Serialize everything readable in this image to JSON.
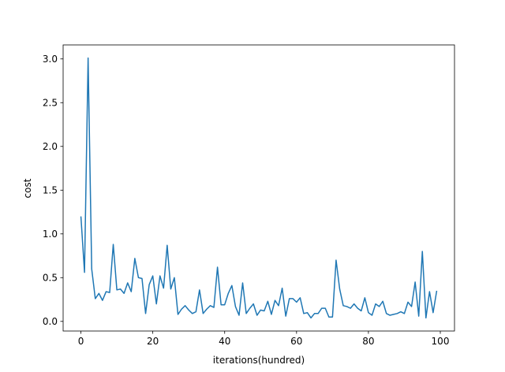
{
  "chart_data": {
    "type": "line",
    "xlabel": "iterations(hundred)",
    "ylabel": "cost",
    "x": [
      0,
      1,
      2,
      3,
      4,
      5,
      6,
      7,
      8,
      9,
      10,
      11,
      12,
      13,
      14,
      15,
      16,
      17,
      18,
      19,
      20,
      21,
      22,
      23,
      24,
      25,
      26,
      27,
      28,
      29,
      30,
      31,
      32,
      33,
      34,
      35,
      36,
      37,
      38,
      39,
      40,
      41,
      42,
      43,
      44,
      45,
      46,
      47,
      48,
      49,
      50,
      51,
      52,
      53,
      54,
      55,
      56,
      57,
      58,
      59,
      60,
      61,
      62,
      63,
      64,
      65,
      66,
      67,
      68,
      69,
      70,
      71,
      72,
      73,
      74,
      75,
      76,
      77,
      78,
      79,
      80,
      81,
      82,
      83,
      84,
      85,
      86,
      87,
      88,
      89,
      90,
      91,
      92,
      93,
      94,
      95,
      96,
      97,
      98,
      99
    ],
    "values": [
      1.2,
      0.56,
      3.01,
      0.6,
      0.26,
      0.32,
      0.24,
      0.34,
      0.33,
      0.88,
      0.36,
      0.37,
      0.32,
      0.44,
      0.34,
      0.72,
      0.5,
      0.49,
      0.09,
      0.42,
      0.52,
      0.2,
      0.52,
      0.38,
      0.87,
      0.37,
      0.5,
      0.08,
      0.14,
      0.18,
      0.13,
      0.09,
      0.11,
      0.36,
      0.09,
      0.14,
      0.18,
      0.16,
      0.62,
      0.19,
      0.19,
      0.32,
      0.41,
      0.17,
      0.07,
      0.44,
      0.09,
      0.15,
      0.2,
      0.07,
      0.13,
      0.12,
      0.23,
      0.08,
      0.24,
      0.18,
      0.38,
      0.06,
      0.26,
      0.26,
      0.22,
      0.27,
      0.09,
      0.1,
      0.04,
      0.09,
      0.09,
      0.15,
      0.15,
      0.05,
      0.05,
      0.7,
      0.37,
      0.18,
      0.17,
      0.15,
      0.2,
      0.15,
      0.12,
      0.27,
      0.1,
      0.07,
      0.2,
      0.17,
      0.23,
      0.09,
      0.07,
      0.08,
      0.09,
      0.11,
      0.09,
      0.22,
      0.17,
      0.45,
      0.06,
      0.8,
      0.04,
      0.34,
      0.1,
      0.35
    ],
    "color": "#1f77b4",
    "xlim": [
      -4.95,
      103.95
    ],
    "xticks": [
      0,
      20,
      40,
      60,
      80,
      100
    ],
    "ylim": [
      -0.11,
      3.16
    ],
    "yticks": [
      {
        "value": 0,
        "label": "0.0"
      },
      0.5,
      {
        "value": 1,
        "label": "1.0"
      },
      1.5,
      {
        "value": 2,
        "label": "2.0"
      },
      2.5,
      {
        "value": 3,
        "label": "3.0"
      }
    ]
  }
}
